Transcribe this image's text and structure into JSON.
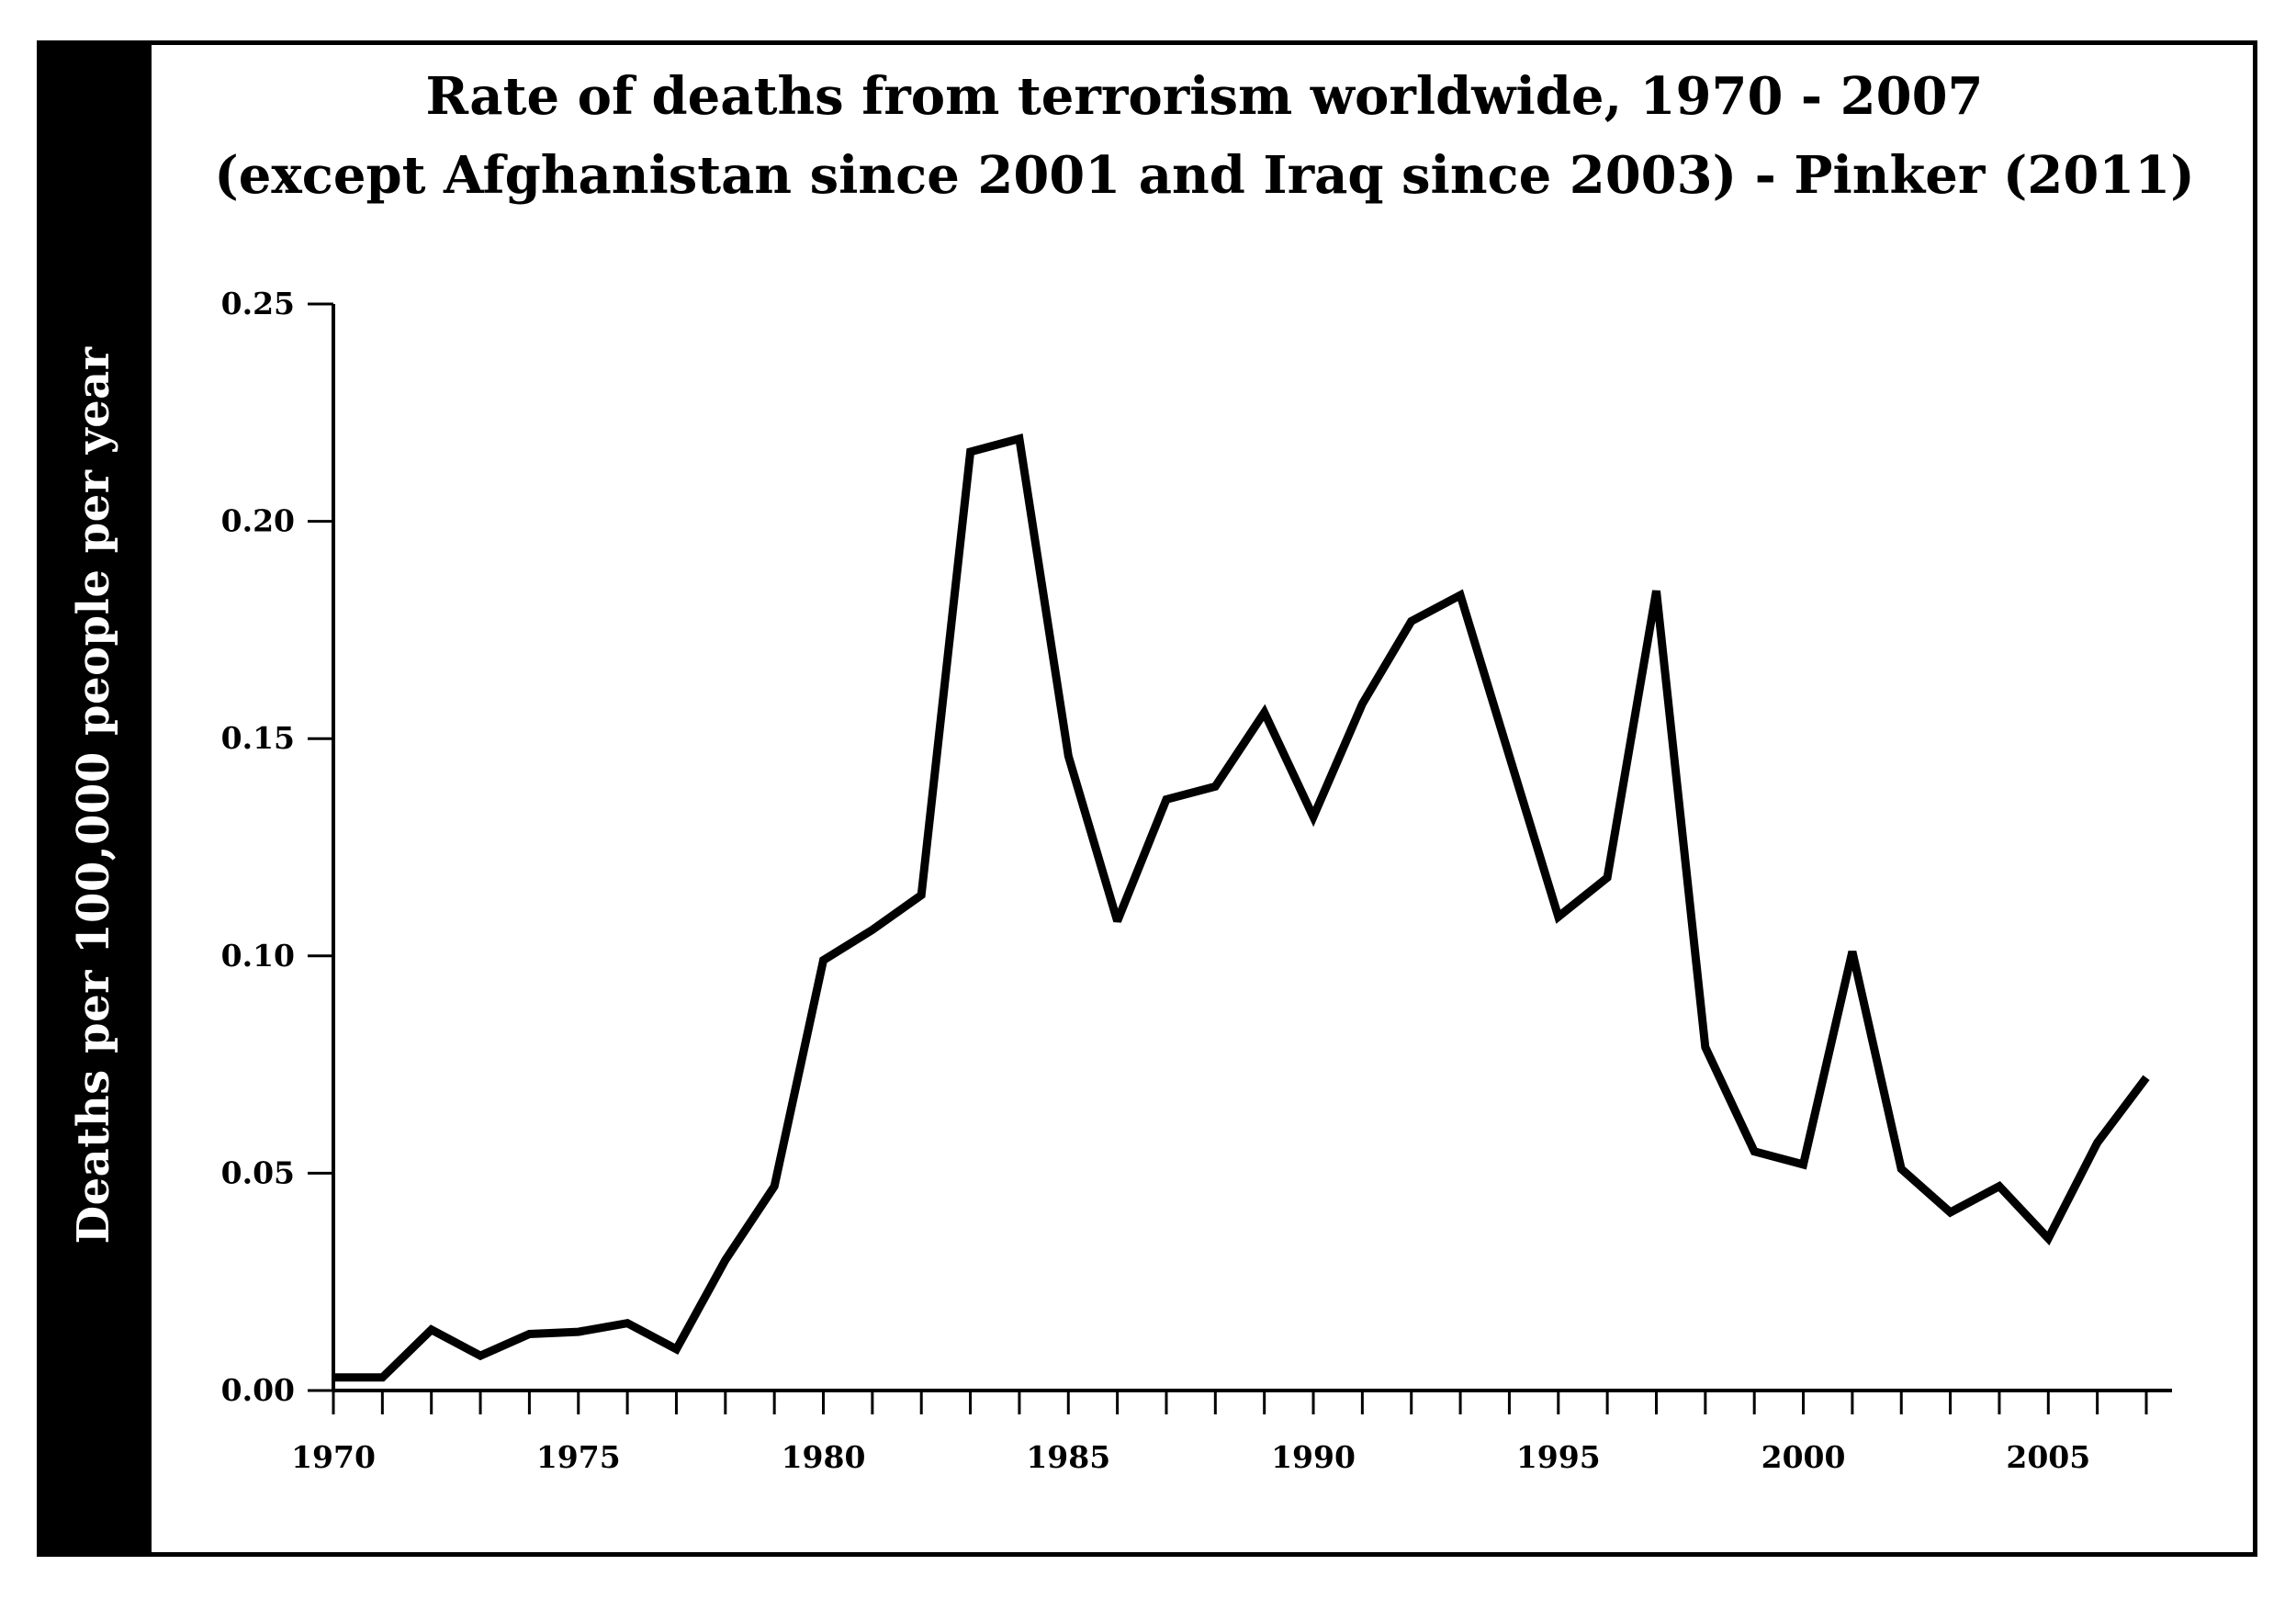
{
  "chart_data": {
    "type": "line",
    "title": "Rate of deaths from terrorism worldwide, 1970 - 2007",
    "subtitle": "(except Afghanistan since 2001 and Iraq since 2003) - Pinker (2011)",
    "xlabel": "",
    "ylabel": "Deaths per 100,000 people per year",
    "xlim": [
      1970,
      2007
    ],
    "ylim": [
      0,
      0.25
    ],
    "x_tick_labels": [
      "1970",
      "1975",
      "1980",
      "1985",
      "1990",
      "1995",
      "2000",
      "2005"
    ],
    "y_tick_labels": [
      "0.00",
      "0.05",
      "0.10",
      "0.15",
      "0.20",
      "0.25"
    ],
    "grid": false,
    "series": [
      {
        "x": [
          1970,
          1971,
          1972,
          1973,
          1974,
          1975,
          1976,
          1977,
          1978,
          1979,
          1980,
          1981,
          1982,
          1983,
          1984,
          1985,
          1986,
          1987,
          1988,
          1989,
          1990,
          1991,
          1992,
          1993,
          1994,
          1995,
          1996,
          1997,
          1998,
          1999,
          2000,
          2001,
          2002,
          2003,
          2004,
          2005,
          2006,
          2007
        ],
        "values": [
          0.003,
          0.003,
          0.014,
          0.008,
          0.013,
          0.0135,
          0.0155,
          0.0095,
          0.03,
          0.047,
          0.099,
          0.106,
          0.114,
          0.216,
          0.219,
          0.146,
          0.108,
          0.136,
          0.139,
          0.156,
          0.132,
          0.158,
          0.177,
          0.183,
          0.146,
          0.109,
          0.118,
          0.184,
          0.079,
          0.055,
          0.052,
          0.101,
          0.051,
          0.041,
          0.047,
          0.035,
          0.057,
          0.072
        ]
      }
    ],
    "colors": {
      "line": "#000000",
      "axis": "#000000",
      "side_bar": "#000000",
      "background": "#ffffff"
    }
  }
}
